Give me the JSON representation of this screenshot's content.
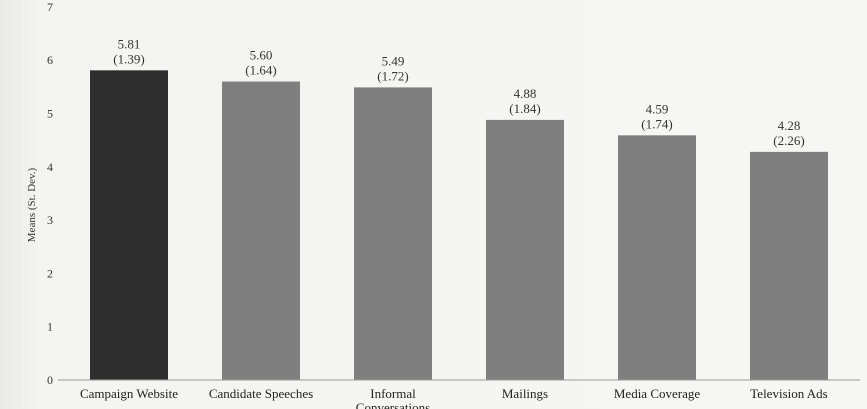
{
  "chart_data": {
    "type": "bar",
    "title": "",
    "xlabel": "",
    "ylabel": "Means (St. Dev.)",
    "ylim": [
      0,
      7
    ],
    "yticks": [
      "0",
      "1",
      "2",
      "3",
      "4",
      "5",
      "6",
      "7"
    ],
    "categories": [
      "Campaign Website",
      "Candidate Speeches",
      "Informal Conversations",
      "Mailings",
      "Media Coverage",
      "Television Ads"
    ],
    "category_label_lines": [
      [
        "Campaign Website"
      ],
      [
        "Candidate Speeches"
      ],
      [
        "Informal",
        "Conversations"
      ],
      [
        "Mailings"
      ],
      [
        "Media Coverage"
      ],
      [
        "Television Ads"
      ]
    ],
    "values": [
      5.81,
      5.6,
      5.49,
      4.88,
      4.59,
      4.28
    ],
    "value_labels": [
      "5.81",
      "5.60",
      "5.49",
      "4.88",
      "4.59",
      "4.28"
    ],
    "sd_labels": [
      "(1.39)",
      "(1.64)",
      "(1.72)",
      "(1.84)",
      "(1.74)",
      "(2.26)"
    ],
    "bar_colors": [
      "#2e2e2e",
      "#7f7f7f",
      "#7f7f7f",
      "#7f7f7f",
      "#7f7f7f",
      "#7f7f7f"
    ],
    "grid": false,
    "legend": "none"
  }
}
